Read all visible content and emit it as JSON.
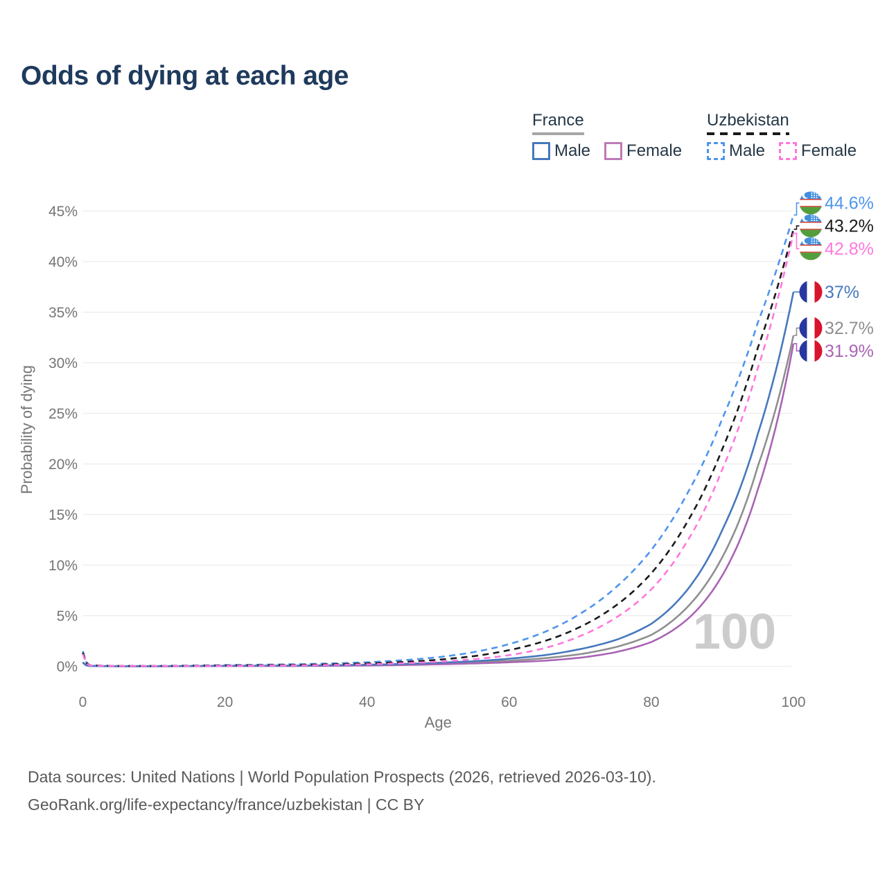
{
  "title": "Odds of dying at each age",
  "watermark": "100",
  "colors": {
    "background": "#ffffff",
    "title_text": "#1e3a5c",
    "axis_text": "#757575",
    "gridline": "#ececec",
    "watermark": "#cccccc",
    "footer_text": "#595959",
    "legend_text": "#253746"
  },
  "legend": {
    "groups": [
      {
        "id": "france",
        "label": "France",
        "line_style": "solid",
        "line_color": "#a6a6a6",
        "items": [
          {
            "label": "Male",
            "color": "#4678bd",
            "dashed": false
          },
          {
            "label": "Female",
            "color": "#bd7ab8",
            "dashed": false
          }
        ]
      },
      {
        "id": "uzbekistan",
        "label": "Uzbekistan",
        "line_style": "dashed",
        "line_color": "#1a1a1a",
        "items": [
          {
            "label": "Male",
            "color": "#4e95ed",
            "dashed": true
          },
          {
            "label": "Female",
            "color": "#ff77dd",
            "dashed": true
          }
        ]
      }
    ]
  },
  "axes": {
    "x_label": "Age",
    "y_label": "Probability of dying",
    "x_ticks": [
      "0",
      "20",
      "40",
      "60",
      "80",
      "100"
    ],
    "x_tick_values": [
      0,
      20,
      40,
      60,
      80,
      100
    ],
    "y_ticks": [
      "0%",
      "5%",
      "10%",
      "15%",
      "20%",
      "25%",
      "30%",
      "35%",
      "40%",
      "45%"
    ],
    "y_tick_values": [
      0,
      5,
      10,
      15,
      20,
      25,
      30,
      35,
      40,
      45
    ]
  },
  "footer": {
    "line1": "Data sources: United Nations | World Population Prospects (2026, retrieved 2026-03-10).",
    "line2": "GeoRank.org/life-expectancy/france/uzbekistan | CC BY"
  },
  "flags": {
    "france": {
      "blue": "#2837a0",
      "white": "#ffffff",
      "red": "#d8142e"
    },
    "uzbekistan": {
      "blue": "#418fde",
      "white": "#ffffff",
      "red": "#d0342c",
      "green": "#539e3c"
    }
  },
  "chart_data": {
    "type": "line",
    "title": "Odds of dying at each age",
    "xlabel": "Age",
    "ylabel": "Probability of dying",
    "xlim": [
      0,
      100
    ],
    "ylim": [
      0,
      45
    ],
    "grid": "horizontal",
    "legend_position": "top-right",
    "x_unit": "years",
    "y_unit": "percent",
    "ages": [
      0,
      1,
      5,
      10,
      20,
      30,
      40,
      50,
      55,
      60,
      65,
      70,
      75,
      80,
      85,
      90,
      95,
      100
    ],
    "series": [
      {
        "name": "France Both sexes",
        "country": "france",
        "sex": "Both",
        "line": "solid",
        "color": "#8f8f8f",
        "label_color": "#8f8f8f",
        "end_label": "32.7%",
        "end_value": 32.7,
        "values_pct": [
          0.37,
          0.028,
          0.009,
          0.009,
          0.035,
          0.05,
          0.11,
          0.27,
          0.38,
          0.55,
          0.8,
          1.2,
          1.9,
          3.1,
          5.8,
          10.8,
          19.8,
          32.7
        ]
      },
      {
        "name": "France Female",
        "country": "france",
        "sex": "Female",
        "line": "solid",
        "color": "#a964b4",
        "label_color": "#a964b4",
        "end_label": "31.9%",
        "end_value": 31.9,
        "values_pct": [
          0.33,
          0.025,
          0.008,
          0.008,
          0.02,
          0.03,
          0.08,
          0.2,
          0.28,
          0.4,
          0.55,
          0.85,
          1.4,
          2.4,
          4.6,
          9.0,
          17.5,
          31.9
        ]
      },
      {
        "name": "France Male",
        "country": "france",
        "sex": "Male",
        "line": "solid",
        "color": "#4678bd",
        "label_color": "#4678bd",
        "end_label": "37%",
        "end_value": 37,
        "values_pct": [
          0.4,
          0.03,
          0.01,
          0.01,
          0.05,
          0.07,
          0.15,
          0.35,
          0.5,
          0.75,
          1.1,
          1.7,
          2.6,
          4.2,
          7.5,
          13.5,
          23.0,
          37.0
        ]
      },
      {
        "name": "Uzbekistan Male",
        "country": "uzbekistan",
        "sex": "Male",
        "line": "dashed",
        "color": "#4e95ed",
        "label_color": "#4e95ed",
        "end_label": "44.6%",
        "end_value": 44.6,
        "values_pct": [
          1.5,
          0.1,
          0.04,
          0.04,
          0.12,
          0.2,
          0.4,
          0.9,
          1.4,
          2.2,
          3.4,
          5.2,
          7.8,
          11.5,
          17.0,
          24.5,
          34.0,
          44.6
        ]
      },
      {
        "name": "Uzbekistan Both sexes",
        "country": "uzbekistan",
        "sex": "Both",
        "line": "dashed",
        "color": "#1a1a1a",
        "label_color": "#1a1a1a",
        "end_label": "43.2%",
        "end_value": 43.2,
        "values_pct": [
          1.35,
          0.09,
          0.035,
          0.03,
          0.08,
          0.14,
          0.28,
          0.65,
          1.0,
          1.6,
          2.5,
          3.9,
          6.0,
          9.2,
          14.2,
          21.5,
          31.5,
          43.2
        ]
      },
      {
        "name": "Uzbekistan Female",
        "country": "uzbekistan",
        "sex": "Female",
        "line": "dashed",
        "color": "#ff77dd",
        "label_color": "#ff77dd",
        "end_label": "42.8%",
        "end_value": 42.8,
        "values_pct": [
          1.2,
          0.08,
          0.03,
          0.025,
          0.05,
          0.09,
          0.2,
          0.45,
          0.7,
          1.1,
          1.8,
          3.0,
          4.8,
          7.6,
          12.3,
          19.5,
          29.5,
          42.8
        ]
      }
    ]
  }
}
